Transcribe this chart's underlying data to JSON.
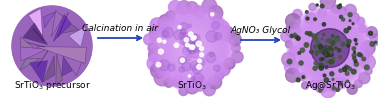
{
  "background_color": "#ffffff",
  "arrow1_text": "Calcination in air",
  "arrow2_text": "AgNO₃ Glycol",
  "label1": "SrTiO₃ precursor",
  "label2": "SrTiO₃",
  "label3": "Ag@SrTiO₃",
  "sphere1_color_base": "#9966bb",
  "sphere1_color_light": "#bb99dd",
  "sphere1_color_dark": "#6633aa",
  "sphere2_color_base": "#cc88ee",
  "sphere2_color_light": "#eeccff",
  "sphere2_color_dark": "#9955cc",
  "sphere3_color_base": "#cc88ee",
  "sphere3_color_dark": "#331155",
  "ag_colors": [
    "#3a4a38",
    "#445544",
    "#2a3828",
    "#4a5a48",
    "#334433"
  ],
  "arrow_color": "#2244bb",
  "label_fontsize": 6.5,
  "arrow_fontsize": 6.5,
  "fig_width": 3.78,
  "fig_height": 0.98,
  "dpi": 100
}
